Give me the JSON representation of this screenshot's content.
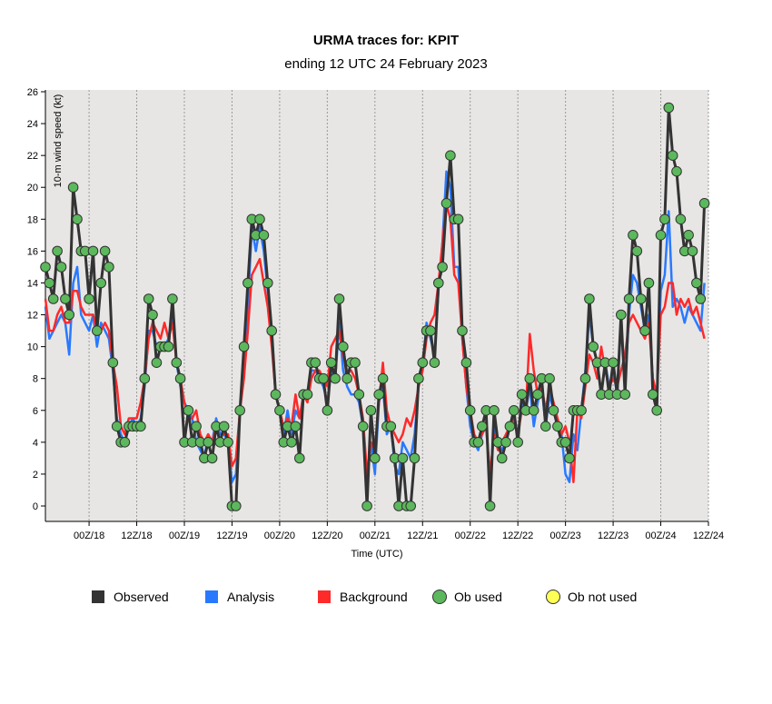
{
  "chart_data": {
    "type": "line",
    "title": "URMA traces for: KPIT",
    "subtitle": "ending 12 UTC 24 February 2023",
    "xlabel": "Time (UTC)",
    "ylabel": "10-m wind speed (kt)",
    "ylim": [
      0,
      26
    ],
    "yticks": [
      0,
      2,
      4,
      6,
      8,
      10,
      12,
      14,
      16,
      18,
      20,
      22,
      24,
      26
    ],
    "xlim": [
      "2023-02-17T13Z",
      "2023-02-24T12Z"
    ],
    "xticks": [
      {
        "time": "2023-02-18T00Z",
        "label": "00Z/18"
      },
      {
        "time": "2023-02-18T12Z",
        "label": "12Z/18"
      },
      {
        "time": "2023-02-19T00Z",
        "label": "00Z/19"
      },
      {
        "time": "2023-02-19T12Z",
        "label": "12Z/19"
      },
      {
        "time": "2023-02-20T00Z",
        "label": "00Z/20"
      },
      {
        "time": "2023-02-20T12Z",
        "label": "12Z/20"
      },
      {
        "time": "2023-02-21T00Z",
        "label": "00Z/21"
      },
      {
        "time": "2023-02-21T12Z",
        "label": "12Z/21"
      },
      {
        "time": "2023-02-22T00Z",
        "label": "00Z/22"
      },
      {
        "time": "2023-02-22T12Z",
        "label": "12Z/22"
      },
      {
        "time": "2023-02-23T00Z",
        "label": "00Z/23"
      },
      {
        "time": "2023-02-23T12Z",
        "label": "12Z/23"
      },
      {
        "time": "2023-02-24T00Z",
        "label": "00Z/24"
      },
      {
        "time": "2023-02-24T12Z",
        "label": "12Z/24"
      }
    ],
    "grid": "vertical dotted lines at tick times",
    "legend_position": "bottom",
    "time_start": "2023-02-17T13Z",
    "time_step_hours": 1,
    "series": [
      {
        "name": "Observed",
        "color": "#333333",
        "values": [
          15,
          14,
          13,
          16,
          15,
          13,
          12,
          20,
          18,
          16,
          16,
          13,
          16,
          11,
          14,
          16,
          15,
          9,
          5,
          4,
          4,
          5,
          5,
          5,
          5,
          8,
          13,
          12,
          9,
          10,
          10,
          10,
          13,
          9,
          8,
          4,
          6,
          4,
          5,
          4,
          3,
          4,
          3,
          5,
          4,
          5,
          4,
          0,
          0,
          6,
          10,
          14,
          18,
          17,
          18,
          17,
          14,
          11,
          7,
          6,
          4,
          5,
          4,
          5,
          3,
          7,
          7,
          9,
          9,
          8,
          8,
          6,
          9,
          8,
          13,
          10,
          8,
          9,
          9,
          7,
          5,
          0,
          6,
          3,
          7,
          8,
          5,
          5,
          3,
          0,
          3,
          0,
          0,
          3,
          8,
          9,
          11,
          11,
          9,
          14,
          15,
          19,
          22,
          18,
          18,
          11,
          9,
          6,
          4,
          4,
          5,
          6,
          0,
          6,
          4,
          3,
          4,
          5,
          6,
          4,
          7,
          6,
          8,
          6,
          7,
          8,
          5,
          8,
          6,
          5,
          4,
          4,
          3,
          6,
          6,
          6,
          8,
          13,
          10,
          9,
          7,
          9,
          7,
          9,
          7,
          12,
          7,
          13,
          17,
          16,
          13,
          11,
          14,
          7,
          6,
          17,
          18,
          25,
          22,
          21,
          18,
          16,
          17,
          16,
          14,
          13,
          19
        ]
      },
      {
        "name": "Analysis",
        "color": "#2979ff",
        "values": [
          12.5,
          10.5,
          11.0,
          11.5,
          12.0,
          11.5,
          9.5,
          14.0,
          15.0,
          12.0,
          11.5,
          11.0,
          12.0,
          10.0,
          11.5,
          11.0,
          10.5,
          8.5,
          5.5,
          4.5,
          4.0,
          5.0,
          5.5,
          5.0,
          5.5,
          7.5,
          11.0,
          11.0,
          10.0,
          10.0,
          10.0,
          10.5,
          12.0,
          9.0,
          7.5,
          6.5,
          6.0,
          5.5,
          4.0,
          3.5,
          3.0,
          4.5,
          4.0,
          5.5,
          4.5,
          4.5,
          4.0,
          1.5,
          2.0,
          6.0,
          9.5,
          12.5,
          17.5,
          16.0,
          17.5,
          16.0,
          13.5,
          11.0,
          7.0,
          6.0,
          4.5,
          6.0,
          4.5,
          6.0,
          5.5,
          7.0,
          7.0,
          8.5,
          8.5,
          8.0,
          7.5,
          6.5,
          8.5,
          8.0,
          11.5,
          8.5,
          7.5,
          7.0,
          7.0,
          6.5,
          5.0,
          1.5,
          4.0,
          2.0,
          6.5,
          7.5,
          4.5,
          5.0,
          2.5,
          2.0,
          4.0,
          3.5,
          3.0,
          4.5,
          7.5,
          8.5,
          11.5,
          10.5,
          9.5,
          13.5,
          16.5,
          21.0,
          20.0,
          15.0,
          15.0,
          10.5,
          7.5,
          5.0,
          4.0,
          3.5,
          4.5,
          5.0,
          1.5,
          5.0,
          4.0,
          3.5,
          4.0,
          5.0,
          5.5,
          4.5,
          6.5,
          6.0,
          7.5,
          5.0,
          6.5,
          7.5,
          5.0,
          7.0,
          6.0,
          5.0,
          4.5,
          2.0,
          1.5,
          4.5,
          3.5,
          6.0,
          8.5,
          12.0,
          10.0,
          9.0,
          7.0,
          9.0,
          7.5,
          8.5,
          7.0,
          11.5,
          7.5,
          12.0,
          14.5,
          14.0,
          12.5,
          11.0,
          12.0,
          8.0,
          6.5,
          13.5,
          14.5,
          18.5,
          12.5,
          13.0,
          12.5,
          11.5,
          12.5,
          12.0,
          11.5,
          11.0,
          14.0
        ]
      },
      {
        "name": "Background",
        "color": "#ff2a2a",
        "values": [
          13.0,
          11.0,
          11.0,
          12.0,
          12.5,
          11.5,
          11.5,
          13.5,
          13.5,
          12.5,
          12.0,
          12.0,
          12.0,
          11.0,
          11.0,
          11.5,
          11.0,
          9.0,
          7.5,
          5.0,
          4.5,
          5.5,
          5.5,
          5.5,
          6.5,
          8.0,
          10.5,
          11.5,
          11.0,
          10.5,
          11.5,
          10.5,
          11.5,
          9.0,
          8.0,
          6.5,
          5.5,
          5.5,
          6.0,
          4.5,
          4.0,
          4.5,
          4.0,
          5.0,
          5.0,
          4.5,
          4.5,
          2.5,
          3.0,
          6.0,
          8.0,
          11.0,
          14.5,
          15.0,
          15.5,
          14.0,
          12.5,
          10.0,
          7.0,
          6.0,
          5.0,
          5.5,
          5.0,
          7.0,
          5.5,
          7.0,
          6.5,
          8.0,
          8.5,
          8.5,
          8.0,
          7.5,
          10.0,
          10.5,
          11.0,
          9.5,
          8.5,
          8.5,
          8.0,
          7.0,
          5.5,
          2.0,
          4.0,
          3.5,
          6.5,
          9.0,
          6.0,
          5.0,
          4.5,
          4.0,
          4.5,
          5.5,
          5.0,
          6.0,
          7.5,
          8.5,
          10.5,
          11.5,
          12.0,
          14.0,
          16.5,
          19.0,
          18.0,
          14.5,
          14.0,
          10.5,
          7.5,
          6.0,
          4.5,
          4.0,
          4.5,
          5.0,
          2.0,
          4.5,
          3.5,
          4.0,
          4.5,
          5.0,
          5.5,
          4.5,
          6.0,
          6.0,
          10.8,
          8.5,
          7.0,
          7.5,
          6.0,
          7.5,
          6.5,
          5.5,
          4.5,
          5.0,
          4.0,
          1.5,
          6.0,
          5.5,
          7.5,
          9.5,
          9.0,
          8.0,
          10.0,
          8.5,
          7.5,
          8.0,
          7.5,
          8.5,
          9.5,
          11.5,
          12.0,
          11.5,
          11.0,
          10.5,
          11.5,
          8.0,
          7.0,
          12.0,
          12.5,
          14.0,
          14.0,
          12.0,
          13.0,
          12.5,
          13.0,
          12.0,
          12.5,
          11.5,
          10.5
        ]
      },
      {
        "name": "Ob used",
        "color": "#5cb85c",
        "values": [
          15,
          14,
          13,
          16,
          15,
          13,
          12,
          20,
          18,
          16,
          16,
          13,
          16,
          11,
          14,
          16,
          15,
          9,
          5,
          4,
          4,
          5,
          5,
          5,
          5,
          8,
          13,
          12,
          9,
          10,
          10,
          10,
          13,
          9,
          8,
          4,
          6,
          4,
          5,
          4,
          3,
          4,
          3,
          5,
          4,
          5,
          4,
          0,
          0,
          6,
          10,
          14,
          18,
          17,
          18,
          17,
          14,
          11,
          7,
          6,
          4,
          5,
          4,
          5,
          3,
          7,
          7,
          9,
          9,
          8,
          8,
          6,
          9,
          8,
          13,
          10,
          8,
          9,
          9,
          7,
          5,
          0,
          6,
          3,
          7,
          8,
          5,
          5,
          3,
          0,
          3,
          0,
          0,
          3,
          8,
          9,
          11,
          11,
          9,
          14,
          15,
          19,
          22,
          18,
          18,
          11,
          9,
          6,
          4,
          4,
          5,
          6,
          0,
          6,
          4,
          3,
          4,
          5,
          6,
          4,
          7,
          6,
          8,
          6,
          7,
          8,
          5,
          8,
          6,
          5,
          4,
          4,
          3,
          6,
          6,
          6,
          8,
          13,
          10,
          9,
          7,
          9,
          7,
          9,
          7,
          12,
          7,
          13,
          17,
          16,
          13,
          11,
          14,
          7,
          6,
          17,
          18,
          25,
          22,
          21,
          18,
          16,
          17,
          16,
          14,
          13,
          19
        ]
      },
      {
        "name": "Ob not used",
        "color": "#ffff55",
        "values": []
      }
    ]
  }
}
